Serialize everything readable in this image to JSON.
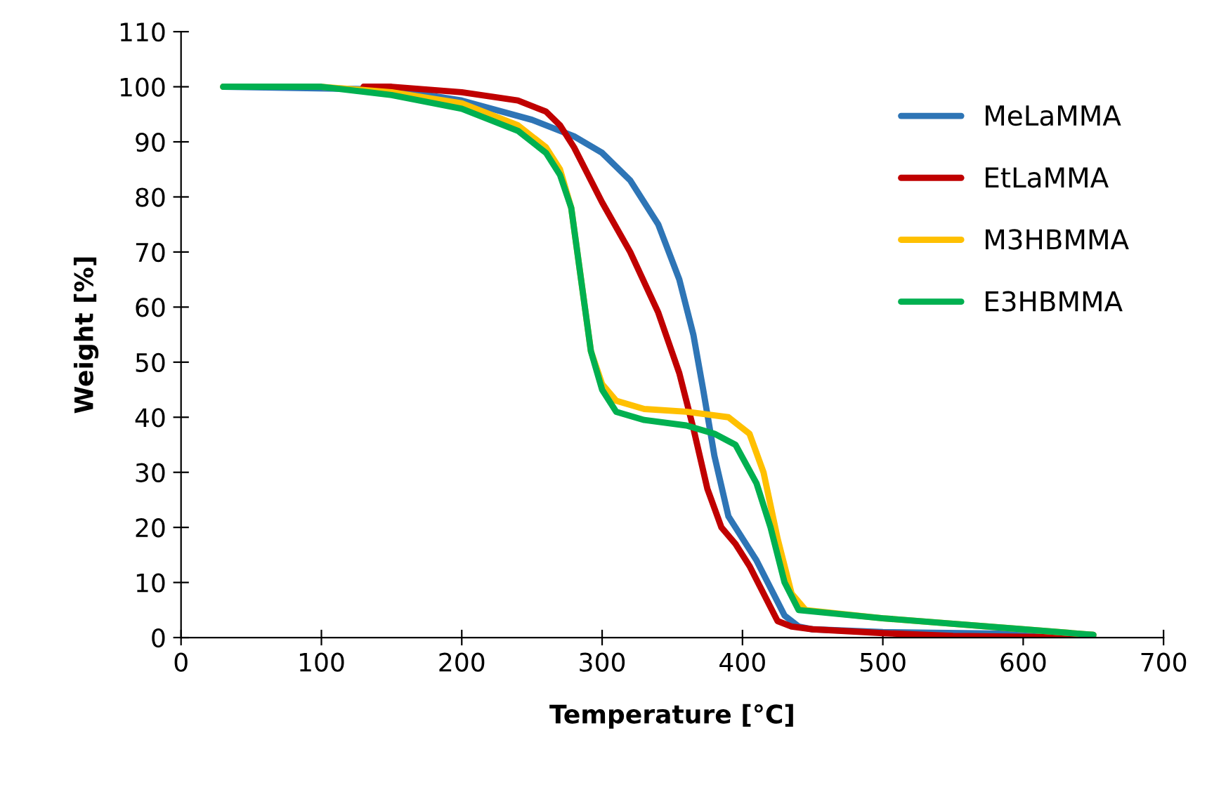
{
  "chart_data": {
    "type": "line",
    "xlabel": "Temperature [°C]",
    "ylabel": "Weight [%]",
    "xlim": [
      0,
      700
    ],
    "xticks": [
      0,
      100,
      200,
      300,
      400,
      500,
      600,
      700
    ],
    "ylim": [
      0,
      110
    ],
    "yticks": [
      0,
      10,
      20,
      30,
      40,
      50,
      60,
      70,
      80,
      90,
      100,
      110
    ],
    "grid": false,
    "legend": "top right",
    "marker": "none",
    "line_style": "solid",
    "series": [
      {
        "name": "MeLaMMA",
        "color": "#2e75b6",
        "x": [
          30,
          150,
          200,
          250,
          280,
          300,
          320,
          340,
          355,
          365,
          372,
          380,
          390,
          400,
          410,
          420,
          430,
          440,
          450,
          500,
          650
        ],
        "values": [
          100,
          99.5,
          97.5,
          94,
          91,
          88,
          83,
          75,
          65,
          55,
          45,
          33,
          22,
          18,
          14,
          9,
          4,
          2,
          1.5,
          1,
          0.5
        ]
      },
      {
        "name": "EtLaMMA",
        "color": "#c00000",
        "x": [
          130,
          150,
          200,
          240,
          260,
          270,
          280,
          290,
          300,
          320,
          340,
          355,
          365,
          375,
          385,
          395,
          405,
          415,
          425,
          435,
          450,
          500,
          550,
          650
        ],
        "values": [
          100,
          100,
          99,
          97.5,
          95.5,
          93,
          89,
          84,
          79,
          70,
          59,
          48,
          38,
          27,
          20,
          17,
          13,
          8,
          3,
          2,
          1.5,
          0.8,
          0.3,
          0
        ]
      },
      {
        "name": "M3HBMMA",
        "color": "#ffc000",
        "x": [
          30,
          100,
          150,
          200,
          240,
          260,
          270,
          278,
          285,
          292,
          300,
          310,
          330,
          360,
          390,
          405,
          415,
          425,
          435,
          445,
          500,
          600,
          650
        ],
        "values": [
          100,
          100,
          99,
          97,
          93,
          89,
          85,
          78,
          65,
          52,
          46,
          43,
          41.5,
          41,
          40,
          37,
          30,
          18,
          8,
          5,
          3.5,
          1.5,
          0.5
        ]
      },
      {
        "name": "E3HBMMA",
        "color": "#00b050",
        "x": [
          30,
          100,
          150,
          200,
          240,
          260,
          270,
          278,
          285,
          292,
          300,
          310,
          330,
          360,
          380,
          395,
          410,
          420,
          430,
          440,
          500,
          600,
          650
        ],
        "values": [
          100,
          100,
          98.5,
          96,
          92,
          88,
          84,
          78,
          65,
          52,
          45,
          41,
          39.5,
          38.5,
          37,
          35,
          28,
          20,
          10,
          5,
          3.5,
          1.5,
          0.5
        ]
      }
    ]
  }
}
